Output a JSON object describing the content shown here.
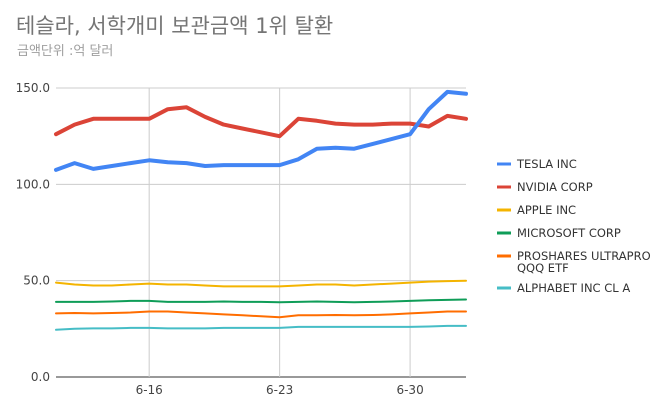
{
  "chart_data": {
    "type": "line",
    "title": "테슬라, 서학개미 보관금액 1위 탈환",
    "subtitle": "금액단위 :억 달러",
    "ylim": [
      0,
      150
    ],
    "y_ticks": [
      "0.0",
      "50.0",
      "100.0",
      "150.0"
    ],
    "x_tick_labels": [
      "6-16",
      "6-23",
      "6-30"
    ],
    "x_tick_index": [
      5,
      12,
      19
    ],
    "grid": true,
    "legend_position": "right",
    "series": [
      {
        "name": "TESLA INC",
        "color": "#4285f4",
        "values": [
          107.5,
          111,
          108,
          109.5,
          111,
          112.5,
          111.5,
          111,
          109.5,
          110,
          110,
          110,
          110,
          113,
          118.5,
          119,
          118.5,
          121,
          123.5,
          126,
          139,
          148,
          147
        ]
      },
      {
        "name": "NVIDIA CORP",
        "color": "#db4437",
        "values": [
          126,
          131,
          134,
          134,
          134,
          134,
          139,
          140,
          135,
          131,
          129,
          127,
          125,
          134,
          133,
          131.5,
          131,
          131,
          131.5,
          131.5,
          130,
          135.5,
          134
        ]
      },
      {
        "name": "APPLE INC",
        "color": "#f4b400",
        "values": [
          49,
          48,
          47.5,
          47.5,
          48,
          48.5,
          48,
          48,
          47.5,
          47,
          47,
          47,
          47,
          47.5,
          48,
          48,
          47.5,
          48,
          48.5,
          49,
          49.5,
          49.8,
          50
        ]
      },
      {
        "name": "MICROSOFT CORP",
        "color": "#0f9d58",
        "values": [
          39,
          39,
          39,
          39.2,
          39.5,
          39.5,
          39,
          39,
          39,
          39.2,
          39,
          39,
          38.8,
          39,
          39.2,
          39,
          38.8,
          39,
          39.2,
          39.5,
          39.8,
          40,
          40.2
        ]
      },
      {
        "name": "PROSHARES ULTRAPRO QQQ ETF",
        "color": "#ff6d00",
        "values": [
          33,
          33.2,
          33,
          33.2,
          33.5,
          34,
          34,
          33.5,
          33,
          32.5,
          32,
          31.5,
          31,
          32,
          32,
          32.2,
          32,
          32.2,
          32.5,
          33,
          33.5,
          34,
          34
        ]
      },
      {
        "name": "ALPHABET INC CL A",
        "color": "#46bdc6",
        "values": [
          24.5,
          25,
          25.2,
          25.2,
          25.5,
          25.5,
          25.2,
          25.2,
          25.2,
          25.5,
          25.5,
          25.5,
          25.5,
          26,
          26,
          26,
          26,
          26,
          26,
          26,
          26.2,
          26.5,
          26.5
        ]
      }
    ]
  }
}
